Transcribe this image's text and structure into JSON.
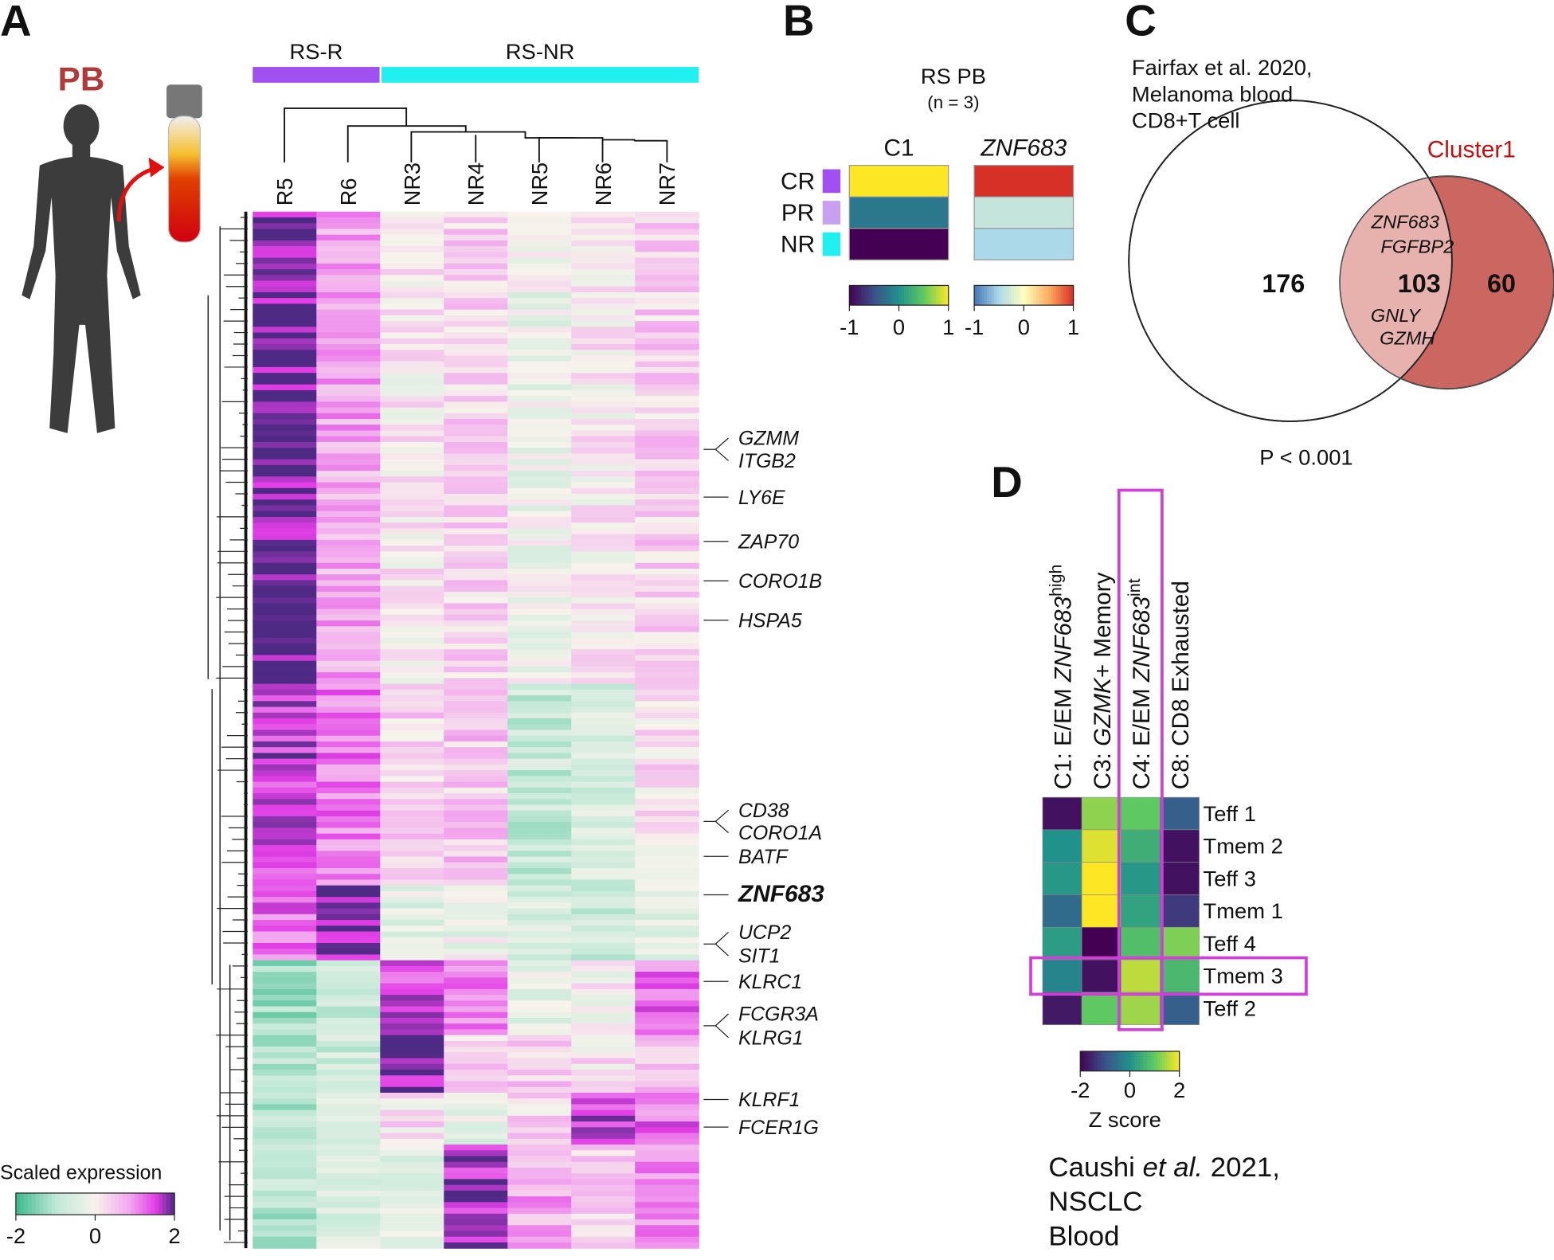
{
  "panel_labels": [
    "A",
    "B",
    "C",
    "D"
  ],
  "panel_a": {
    "tissue": "PB",
    "groups": [
      {
        "name": "RS-R",
        "color": "#a050f0"
      },
      {
        "name": "RS-NR",
        "color": "#20f0f0"
      }
    ],
    "samples": [
      "R5",
      "R6",
      "NR3",
      "NR4",
      "NR5",
      "NR6",
      "NR7"
    ],
    "genes": [
      {
        "text": "GZMM"
      },
      {
        "text": "ITGB2"
      },
      {
        "text": "LY6E"
      },
      {
        "text": "ZAP70"
      },
      {
        "text": "CORO1B"
      },
      {
        "text": "HSPA5"
      },
      {
        "text": "CD38"
      },
      {
        "text": "CORO1A"
      },
      {
        "text": "BATF"
      },
      {
        "text": "ZNF683",
        "bold": true
      },
      {
        "text": "UCP2"
      },
      {
        "text": "SIT1"
      },
      {
        "text": "KLRC1"
      },
      {
        "text": "FCGR3A"
      },
      {
        "text": "KLRG1"
      },
      {
        "text": "KLRF1"
      },
      {
        "text": "FCER1G"
      }
    ],
    "colorbar": {
      "title": "Scaled expression",
      "ticks": [
        -2,
        0,
        2
      ]
    }
  },
  "panel_b": {
    "title": "RS PB",
    "subtitle": "(n = 3)",
    "columns": [
      {
        "text": "C1",
        "colormap": "viridis"
      },
      {
        "text": "ZNF683",
        "italic": true,
        "colormap": "rdylbu"
      }
    ],
    "rows": [
      {
        "name": "CR",
        "color": "#a050f0"
      },
      {
        "name": "PR",
        "color": "#c8a0f0"
      },
      {
        "name": "NR",
        "color": "#20f0f0"
      }
    ],
    "values": [
      [
        1,
        -0.2,
        -1
      ],
      [
        1,
        -0.35,
        -0.5
      ]
    ],
    "colorbar_ticks": [
      -1,
      0,
      1
    ]
  },
  "panel_c": {
    "reference_lines": [
      "Fairfax et al. 2020,",
      "Melanoma blood",
      "CD8+T cell"
    ],
    "cluster_label": "Cluster1",
    "counts": [
      176,
      103,
      60
    ],
    "overlap_genes": [
      "ZNF683",
      "FGFBP2",
      "GNLY",
      "GZMH"
    ],
    "p_value": "P < 0.001"
  },
  "panel_d": {
    "columns": [
      [
        {
          "text": "C1: E/EM "
        },
        {
          "text": "ZNF683",
          "style": "italic"
        },
        {
          "text": "high",
          "style": "sup"
        }
      ],
      [
        {
          "text": "C3: "
        },
        {
          "text": "GZMK",
          "style": "italic"
        },
        {
          "text": "+ Memory"
        }
      ],
      [
        {
          "text": "C4: E/EM "
        },
        {
          "text": "ZNF683",
          "style": "italic"
        },
        {
          "text": "int",
          "style": "sup"
        }
      ],
      [
        {
          "text": "C8: CD8 Exhausted"
        }
      ]
    ],
    "rows": [
      "Teff 1",
      "Tmem 2",
      "Teff 3",
      "Tmem 1",
      "Teff 4",
      "Tmem 3",
      "Teff 2"
    ],
    "values": [
      [
        -1.8,
        0,
        0.1,
        -0.6,
        0.2,
        -0.2,
        -1.7
      ],
      [
        1.3,
        1.8,
        2,
        2,
        -2,
        -1.8,
        1.0
      ],
      [
        1.0,
        0.5,
        0.1,
        0.3,
        0.8,
        1.6,
        1.4
      ],
      [
        -0.8,
        -1.8,
        -1.8,
        -1.3,
        1.2,
        0.7,
        -0.8
      ]
    ],
    "colormap": "viridis",
    "highlight_column": 2,
    "highlight_row": 5,
    "highlight_color": "#d040d8",
    "colorbar": {
      "title": "Z score",
      "ticks": [
        -2,
        0,
        2
      ]
    },
    "caption": [
      [
        {
          "text": "Caushi "
        },
        {
          "text": "et al.",
          "style": "italic"
        },
        {
          "text": " 2021,"
        }
      ],
      [
        {
          "text": "NSCLC"
        }
      ],
      [
        {
          "text": "Blood"
        }
      ]
    ]
  }
}
